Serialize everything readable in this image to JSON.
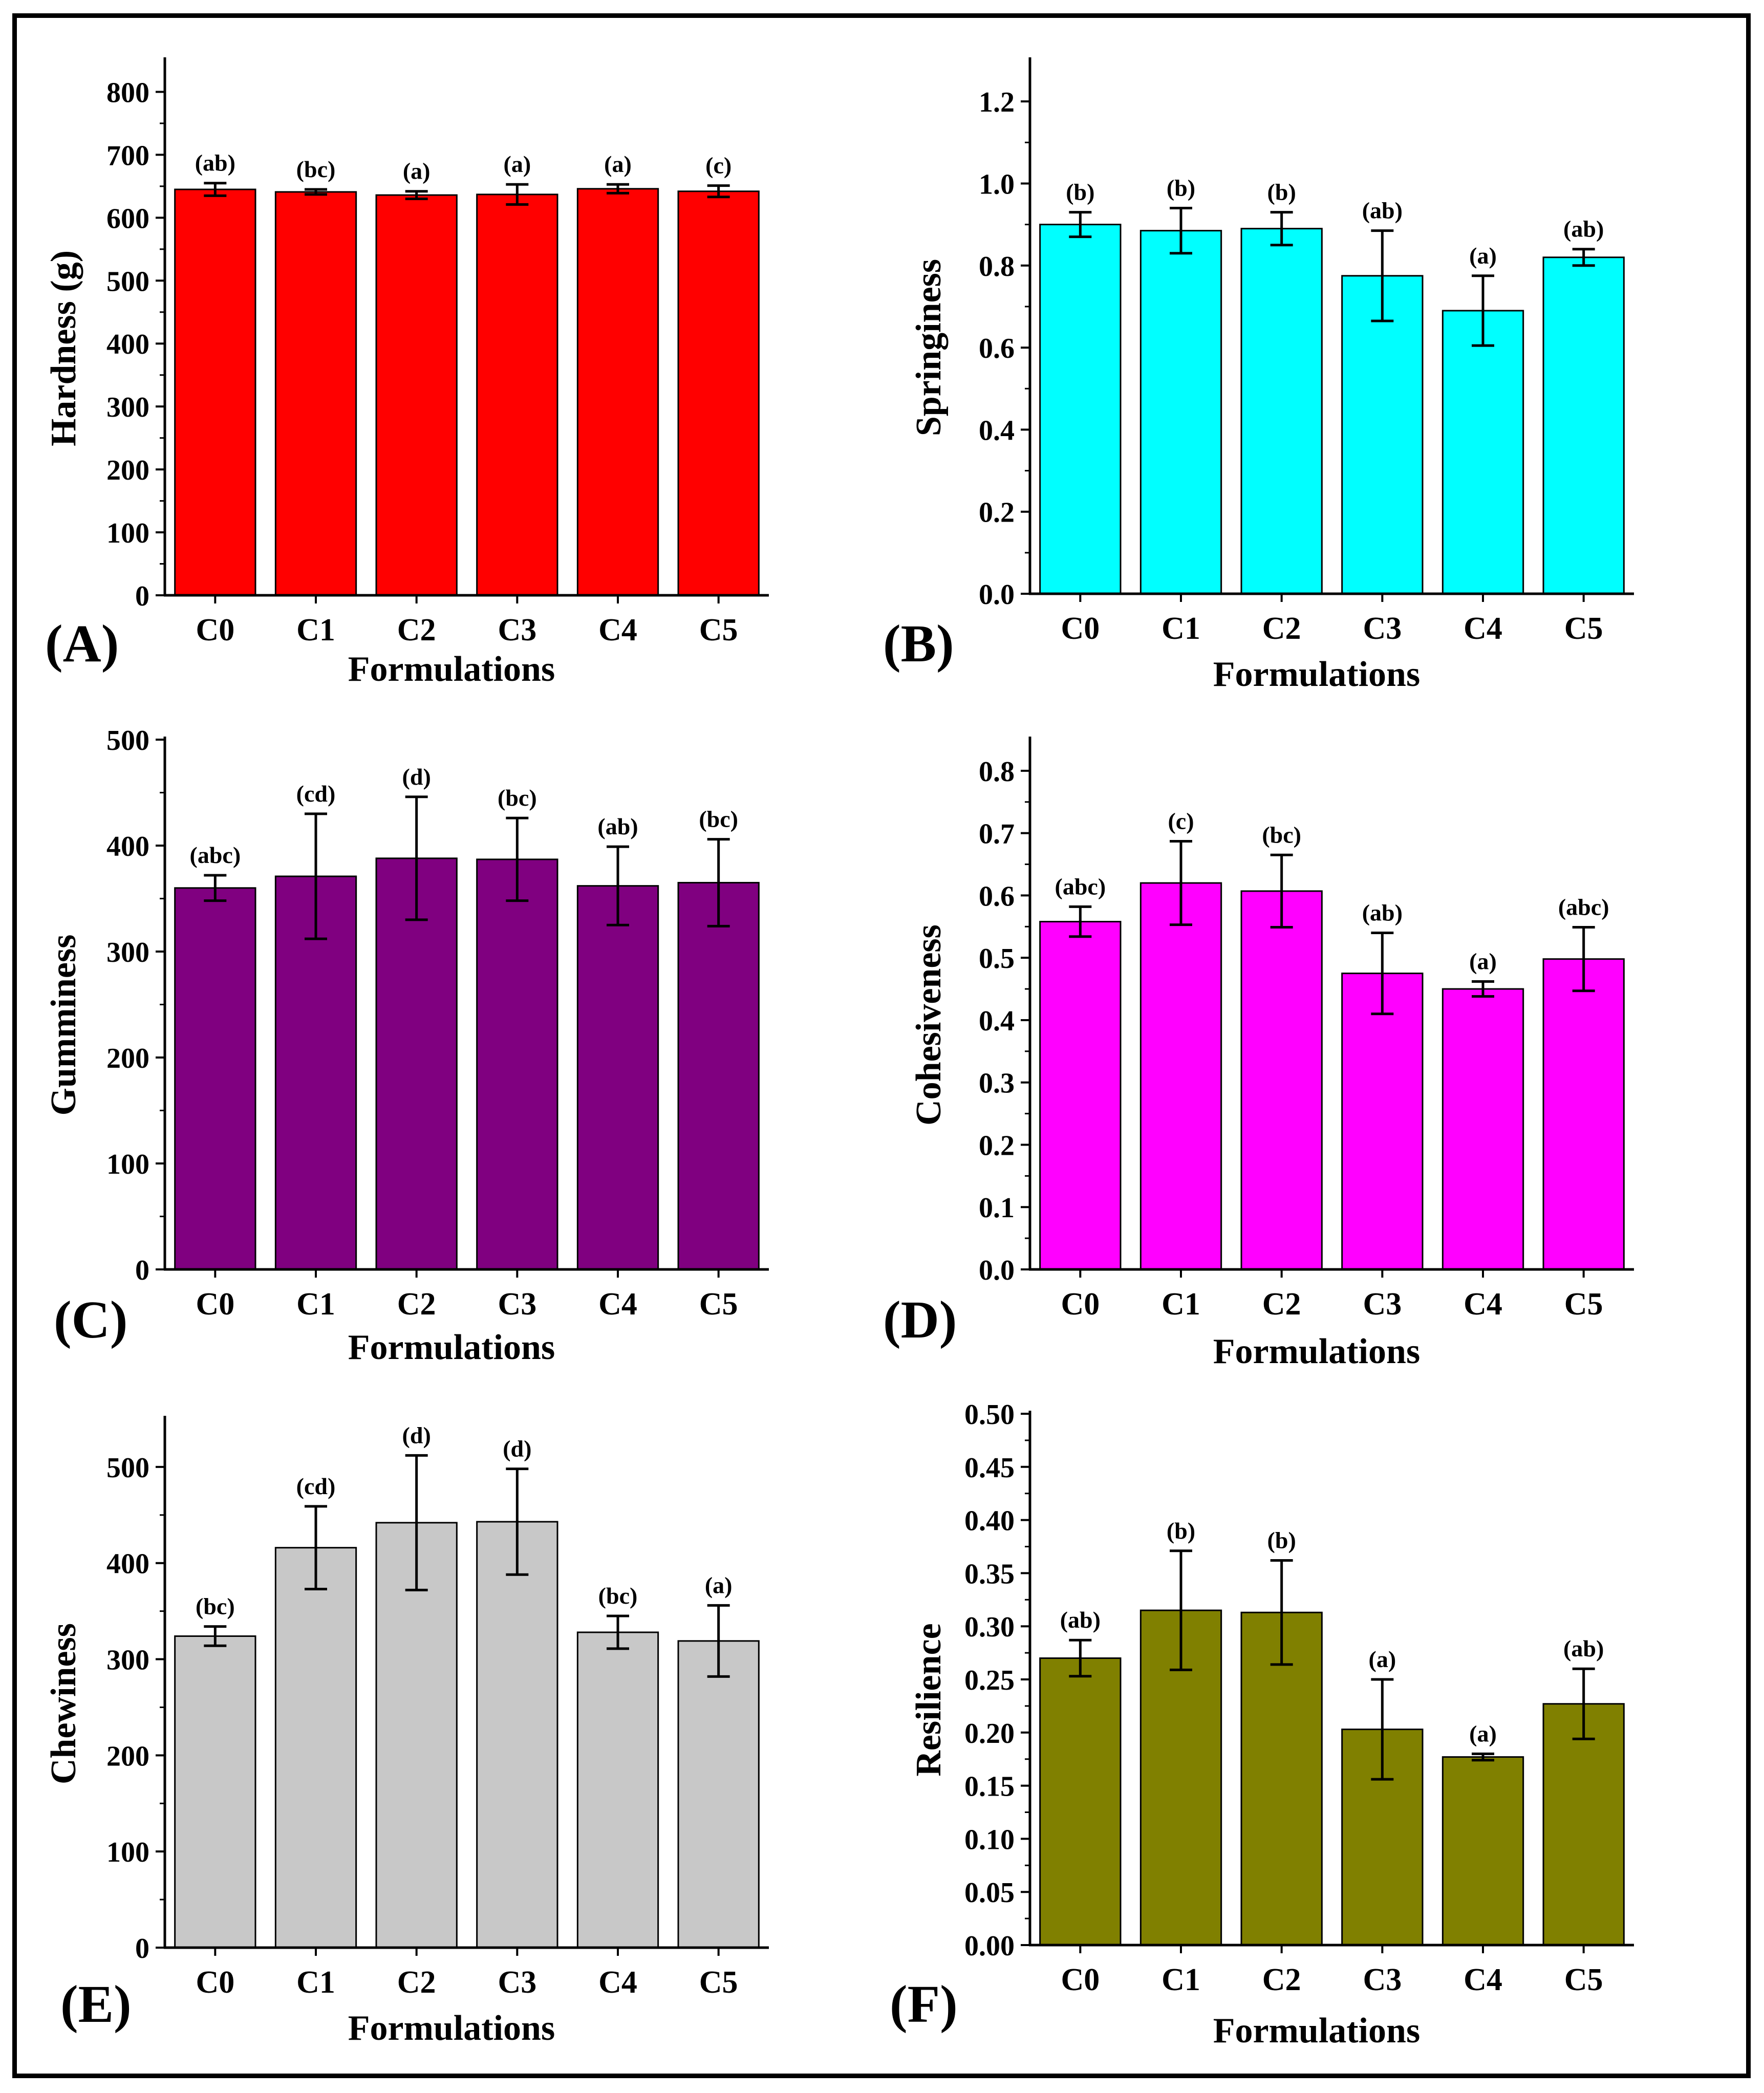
{
  "figure": {
    "panels": [
      {
        "id": "A",
        "letter": "(A)"
      },
      {
        "id": "B",
        "letter": "(B)"
      },
      {
        "id": "C",
        "letter": "(C)"
      },
      {
        "id": "D",
        "letter": "(D)"
      },
      {
        "id": "E",
        "letter": "(E)"
      },
      {
        "id": "F",
        "letter": "(F)"
      }
    ]
  },
  "chart_data": [
    {
      "type": "bar",
      "panel": "(A)",
      "color": "#ff0000",
      "categories": [
        "C0",
        "C1",
        "C2",
        "C3",
        "C4",
        "C5"
      ],
      "values": [
        645,
        641,
        636,
        637,
        646,
        642
      ],
      "errors": [
        10,
        4,
        6,
        16,
        7,
        9
      ],
      "significance": [
        "(ab)",
        "(bc)",
        "(a)",
        "(a)",
        "(a)",
        "(c)"
      ],
      "xlabel": "Formulations",
      "ylabel": "Hardness (g)",
      "ylim": [
        0,
        850
      ],
      "yticks": [
        0,
        100,
        200,
        300,
        400,
        500,
        600,
        700,
        800
      ],
      "decimals": 0
    },
    {
      "type": "bar",
      "panel": "(B)",
      "color": "#00ffff",
      "categories": [
        "C0",
        "C1",
        "C2",
        "C3",
        "C4",
        "C5"
      ],
      "values": [
        0.9,
        0.885,
        0.89,
        0.775,
        0.69,
        0.82
      ],
      "errors": [
        0.03,
        0.055,
        0.04,
        0.11,
        0.085,
        0.02
      ],
      "significance": [
        "(b)",
        "(b)",
        "(b)",
        "(ab)",
        "(a)",
        "(ab)"
      ],
      "xlabel": "Formulations",
      "ylabel": "Springiness",
      "ylim": [
        0,
        1.3
      ],
      "yticks": [
        0.0,
        0.2,
        0.4,
        0.6,
        0.8,
        1.0,
        1.2
      ],
      "decimals": 1
    },
    {
      "type": "bar",
      "panel": "(C)",
      "color": "#800080",
      "categories": [
        "C0",
        "C1",
        "C2",
        "C3",
        "C4",
        "C5"
      ],
      "values": [
        360,
        371,
        388,
        387,
        362,
        365
      ],
      "errors": [
        12,
        59,
        58,
        39,
        37,
        41
      ],
      "significance": [
        "(abc)",
        "(cd)",
        "(d)",
        "(bc)",
        "(ab)",
        "(bc)"
      ],
      "xlabel": "Formulations",
      "ylabel": "Gumminess",
      "ylim": [
        0,
        500
      ],
      "yticks": [
        0,
        100,
        200,
        300,
        400,
        500
      ],
      "decimals": 0
    },
    {
      "type": "bar",
      "panel": "(D)",
      "color": "#ff00ff",
      "categories": [
        "C0",
        "C1",
        "C2",
        "C3",
        "C4",
        "C5"
      ],
      "values": [
        0.558,
        0.62,
        0.607,
        0.475,
        0.45,
        0.498
      ],
      "errors": [
        0.024,
        0.067,
        0.058,
        0.065,
        0.012,
        0.051
      ],
      "significance": [
        "(abc)",
        "(c)",
        "(bc)",
        "(ab)",
        "(a)",
        "(abc)"
      ],
      "xlabel": "Formulations",
      "ylabel": "Cohesiveness",
      "ylim": [
        0,
        0.85
      ],
      "yticks": [
        0.0,
        0.1,
        0.2,
        0.3,
        0.4,
        0.5,
        0.6,
        0.7,
        0.8
      ],
      "decimals": 1
    },
    {
      "type": "bar",
      "panel": "(E)",
      "color": "#c8c8c8",
      "categories": [
        "C0",
        "C1",
        "C2",
        "C3",
        "C4",
        "C5"
      ],
      "values": [
        324,
        416,
        442,
        443,
        328,
        319
      ],
      "errors": [
        10,
        43,
        70,
        55,
        17,
        37
      ],
      "significance": [
        "(bc)",
        "(cd)",
        "(d)",
        "(d)",
        "(bc)",
        "(a)"
      ],
      "xlabel": "Formulations",
      "ylabel": "Chewiness",
      "ylim": [
        0,
        550
      ],
      "yticks": [
        0,
        100,
        200,
        300,
        400,
        500
      ],
      "decimals": 0
    },
    {
      "type": "bar",
      "panel": "(F)",
      "color": "#808000",
      "categories": [
        "C0",
        "C1",
        "C2",
        "C3",
        "C4",
        "C5"
      ],
      "values": [
        0.27,
        0.315,
        0.313,
        0.203,
        0.177,
        0.227
      ],
      "errors": [
        0.017,
        0.056,
        0.049,
        0.047,
        0.003,
        0.033
      ],
      "significance": [
        "(ab)",
        "(b)",
        "(b)",
        "(a)",
        "(a)",
        "(ab)"
      ],
      "xlabel": "Formulations",
      "ylabel": "Resilience",
      "ylim": [
        0,
        0.5
      ],
      "yticks": [
        0.0,
        0.05,
        0.1,
        0.15,
        0.2,
        0.25,
        0.3,
        0.35,
        0.4,
        0.45,
        0.5
      ],
      "decimals": 2
    }
  ]
}
